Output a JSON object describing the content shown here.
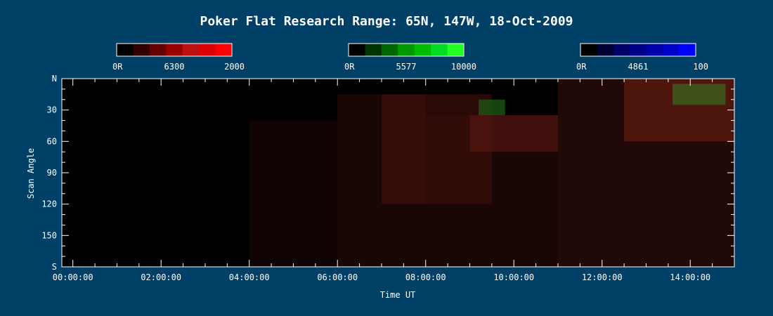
{
  "chart_data": {
    "type": "heatmap",
    "title": "Poker Flat Research Range: 65N, 147W, 18-Oct-2009",
    "xlabel": "Time UT",
    "ylabel": "Scan Angle",
    "x_ticks": [
      "00:00:00",
      "02:00:00",
      "04:00:00",
      "06:00:00",
      "08:00:00",
      "10:00:00",
      "12:00:00",
      "14:00:00"
    ],
    "x_tick_hours": [
      0,
      2,
      4,
      6,
      8,
      10,
      12,
      14
    ],
    "xlim_hours": [
      -0.25,
      15
    ],
    "y_ticks": [
      "N",
      "30",
      "60",
      "90",
      "120",
      "150",
      "S"
    ],
    "y_tick_values": [
      0,
      30,
      60,
      90,
      120,
      150,
      180
    ],
    "ylim": [
      0,
      180
    ],
    "colorbars": [
      {
        "name": "6300",
        "min_label": "0R",
        "max_label": "2000",
        "colors": [
          "#000000",
          "#330000",
          "#660000",
          "#990000",
          "#bb1111",
          "#dd0000",
          "#ff0000"
        ]
      },
      {
        "name": "5577",
        "min_label": "0R",
        "max_label": "10000",
        "colors": [
          "#000000",
          "#003300",
          "#006600",
          "#009900",
          "#00bb00",
          "#00dd22",
          "#22ff22"
        ]
      },
      {
        "name": "4861",
        "min_label": "0R",
        "max_label": "100",
        "colors": [
          "#000000",
          "#000033",
          "#000066",
          "#000088",
          "#0000aa",
          "#0000cc",
          "#0000ff"
        ]
      }
    ],
    "emission_regions": [
      {
        "color": "#3a0d0a",
        "t_start": 4.0,
        "t_end": 6.0,
        "angle_start": 40,
        "angle_end": 180,
        "opacity": 0.25
      },
      {
        "color": "#3a0d0a",
        "t_start": 6.0,
        "t_end": 8.0,
        "angle_start": 15,
        "angle_end": 180,
        "opacity": 0.45
      },
      {
        "color": "#4a120c",
        "t_start": 7.0,
        "t_end": 9.5,
        "angle_start": 15,
        "angle_end": 120,
        "opacity": 0.55
      },
      {
        "color": "#3a0d0a",
        "t_start": 8.0,
        "t_end": 11.0,
        "angle_start": 35,
        "angle_end": 180,
        "opacity": 0.45
      },
      {
        "color": "#5a1810",
        "t_start": 9.0,
        "t_end": 11.0,
        "angle_start": 35,
        "angle_end": 70,
        "opacity": 0.6
      },
      {
        "color": "#4a1410",
        "t_start": 11.0,
        "t_end": 15.0,
        "angle_start": 0,
        "angle_end": 180,
        "opacity": 0.45
      },
      {
        "color": "#6a2012",
        "t_start": 12.5,
        "t_end": 15.0,
        "angle_start": 0,
        "angle_end": 60,
        "opacity": 0.6
      },
      {
        "color": "#1f5a14",
        "t_start": 9.2,
        "t_end": 9.8,
        "angle_start": 20,
        "angle_end": 35,
        "opacity": 0.75
      },
      {
        "color": "#3a6a22",
        "t_start": 13.6,
        "t_end": 14.8,
        "angle_start": 5,
        "angle_end": 25,
        "opacity": 0.7
      }
    ]
  }
}
